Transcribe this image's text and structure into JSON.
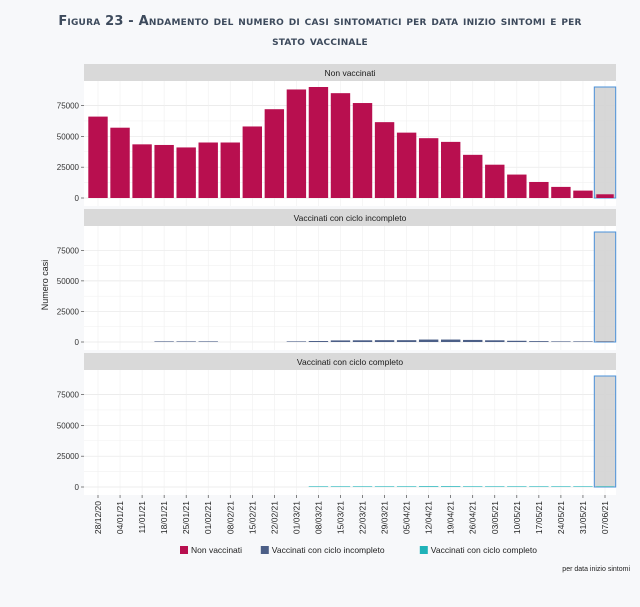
{
  "title": "Figura 23 - Andamento del numero di casi sintomatici per data inizio sintomi e per stato vaccinale",
  "caption": "per data inizio sintomi",
  "chart_data": {
    "type": "bar",
    "ylabel": "Numero casi",
    "xlabel": "",
    "ylim": [
      0,
      90000
    ],
    "yticks": [
      0,
      25000,
      50000,
      75000
    ],
    "ytick_labels": [
      "0",
      "25000",
      "50000",
      "75000"
    ],
    "categories": [
      "28/12/20",
      "04/01/21",
      "11/01/21",
      "18/01/21",
      "25/01/21",
      "01/02/21",
      "08/02/21",
      "15/02/21",
      "22/02/21",
      "01/03/21",
      "08/03/21",
      "15/03/21",
      "22/03/21",
      "29/03/21",
      "05/04/21",
      "12/04/21",
      "19/04/21",
      "26/04/21",
      "03/05/21",
      "10/05/21",
      "17/05/21",
      "24/05/21",
      "31/05/21",
      "07/06/21"
    ],
    "grid": true,
    "legend_position": "bottom",
    "highlight": {
      "category": "07/06/21",
      "value": 90000,
      "fill": "#d3d3d3",
      "stroke": "#4a90d9"
    },
    "panels": [
      {
        "name": "Non vaccinati",
        "color": "#b80f4f",
        "values": [
          66000,
          57000,
          43500,
          43000,
          41000,
          45000,
          45000,
          58000,
          72000,
          88000,
          90000,
          85000,
          77000,
          61500,
          53000,
          48500,
          45500,
          35000,
          27000,
          19000,
          13000,
          9000,
          6000,
          3000
        ]
      },
      {
        "name": "Vaccinati con ciclo incompleto",
        "color": "#4c5f87",
        "values": [
          0,
          0,
          0,
          150,
          200,
          200,
          0,
          0,
          0,
          400,
          800,
          1300,
          1400,
          1500,
          1500,
          2000,
          2000,
          1700,
          1400,
          1000,
          700,
          400,
          200,
          80
        ]
      },
      {
        "name": "Vaccinati con ciclo completo",
        "color": "#1fb2b8",
        "values": [
          0,
          0,
          0,
          0,
          0,
          0,
          0,
          0,
          0,
          0,
          80,
          120,
          180,
          250,
          500,
          600,
          600,
          500,
          300,
          200,
          150,
          100,
          50,
          20
        ]
      }
    ]
  }
}
